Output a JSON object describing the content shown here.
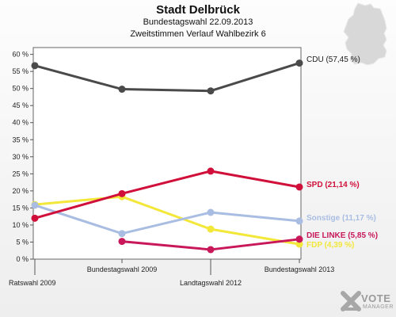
{
  "header": {
    "title": "Stadt Delbrück",
    "subtitle": "Bundestagswahl 22.09.2013",
    "subtitle2": "Zweitstimmen Verlauf Wahlbezirk 6"
  },
  "logo": {
    "line1": "VOTE",
    "line2": "MANAGER",
    "icon": "vote-manager-logo"
  },
  "map_icon": "germany-map-icon",
  "chart_data": {
    "type": "line",
    "categories": [
      "Ratswahl 2009",
      "Bundestagswahl 2009",
      "Landtagswahl 2012",
      "Bundestagswahl 2013"
    ],
    "y_tick_labels": [
      "0 %",
      "5 %",
      "10 %",
      "15 %",
      "20 %",
      "25 %",
      "30 %",
      "35 %",
      "40 %",
      "45 %",
      "50 %",
      "55 %",
      "60 %"
    ],
    "ylim": [
      0,
      62
    ],
    "grid": false,
    "legend": "right-end labels",
    "series": [
      {
        "name": "CDU",
        "end_label": "CDU (57,45 %)",
        "color": "#4a4a4a",
        "values": [
          56.7,
          49.8,
          49.3,
          57.45
        ]
      },
      {
        "name": "SPD",
        "end_label": "SPD (21,14 %)",
        "color": "#d0103a",
        "values": [
          12.0,
          19.2,
          25.8,
          21.14
        ]
      },
      {
        "name": "Sonstige",
        "end_label": "Sonstige (11,17 %)",
        "color": "#a9bde3",
        "values": [
          15.8,
          7.5,
          13.7,
          11.17
        ]
      },
      {
        "name": "DIE LINKE",
        "end_label": "DIE LINKE (5,85 %)",
        "color": "#c8185a",
        "values": [
          null,
          5.2,
          2.8,
          5.85
        ]
      },
      {
        "name": "FDP",
        "end_label": "FDP (4,39 %)",
        "color": "#f3e73a",
        "values": [
          16.0,
          18.3,
          8.8,
          4.39
        ]
      }
    ]
  }
}
